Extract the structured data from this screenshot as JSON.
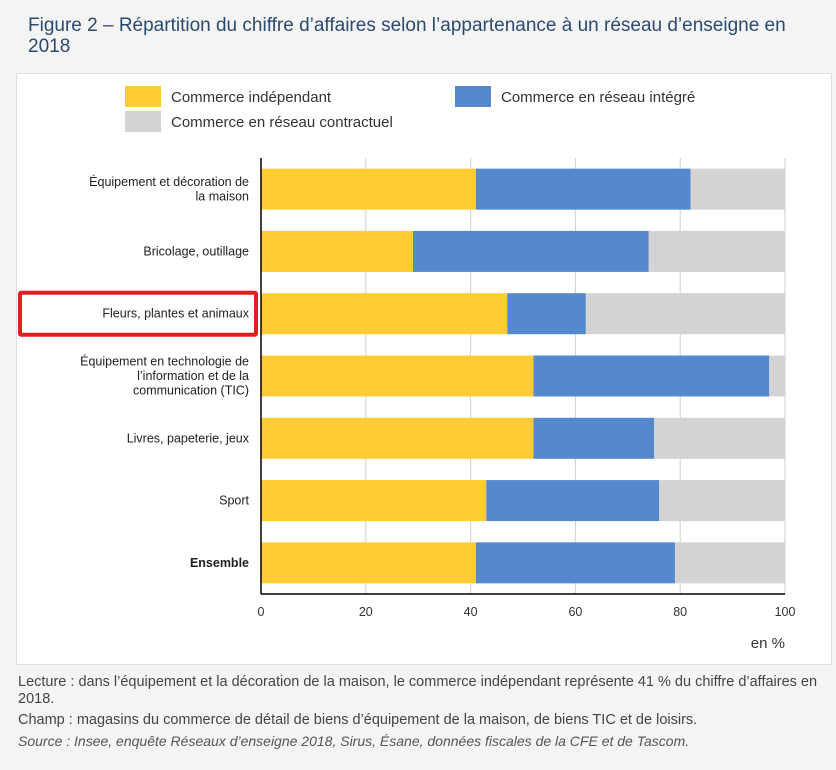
{
  "figure": {
    "title": "Figure 2 – Répartition du chiffre d’affaires selon l’appartenance à un réseau d’enseigne en 2018"
  },
  "notes": {
    "lecture": "Lecture : dans l’équipement et la décoration de la maison, le commerce indépendant représente 41 % du chiffre d’affaires en 2018.",
    "champ": "Champ : magasins du commerce de détail de biens d’équipement de la maison, de biens TIC et de loisirs.",
    "source": "Source : Insee, enquête Réseaux d’enseigne 2018, Sirus, Ésane, données fiscales de la CFE et de Tascom."
  },
  "colors": {
    "independant": "#ffcc33",
    "integre": "#5588cc",
    "contractuel": "#d3d3d3",
    "highlight": "#e02020"
  },
  "chart_data": {
    "type": "bar",
    "orientation": "horizontal",
    "stacked": true,
    "categories": [
      "Équipement et décoration de la maison",
      "Bricolage, outillage",
      "Fleurs, plantes et animaux",
      "Équipement en technologie de l’information et de la communication (TIC)",
      "Livres, papeterie, jeux",
      "Sport",
      "Ensemble"
    ],
    "category_lines": [
      [
        "Équipement et décoration de",
        "la maison"
      ],
      [
        "Bricolage, outillage"
      ],
      [
        "Fleurs, plantes et animaux"
      ],
      [
        "Équipement en technologie de",
        "l’information et de la",
        "communication (TIC)"
      ],
      [
        "Livres, papeterie, jeux"
      ],
      [
        "Sport"
      ],
      [
        "Ensemble"
      ]
    ],
    "bold_categories": [
      "Ensemble"
    ],
    "highlighted_category": "Fleurs, plantes et animaux",
    "series": [
      {
        "name": "Commerce indépendant",
        "values": [
          41,
          29,
          47,
          52,
          52,
          43,
          41
        ]
      },
      {
        "name": "Commerce en réseau intégré",
        "values": [
          41,
          45,
          15,
          45,
          23,
          33,
          38
        ]
      },
      {
        "name": "Commerce en réseau contractuel",
        "values": [
          18,
          26,
          38,
          3,
          25,
          24,
          21
        ]
      }
    ],
    "legend": [
      {
        "name": "Commerce indépendant",
        "color_key": "independant"
      },
      {
        "name": "Commerce en réseau intégré",
        "color_key": "integre"
      },
      {
        "name": "Commerce en réseau contractuel",
        "color_key": "contractuel"
      }
    ],
    "xlim": [
      0,
      100
    ],
    "xticks": [
      0,
      20,
      40,
      60,
      80,
      100
    ],
    "xlabel": "en %",
    "grid": "vertical",
    "legend_position": "top"
  }
}
